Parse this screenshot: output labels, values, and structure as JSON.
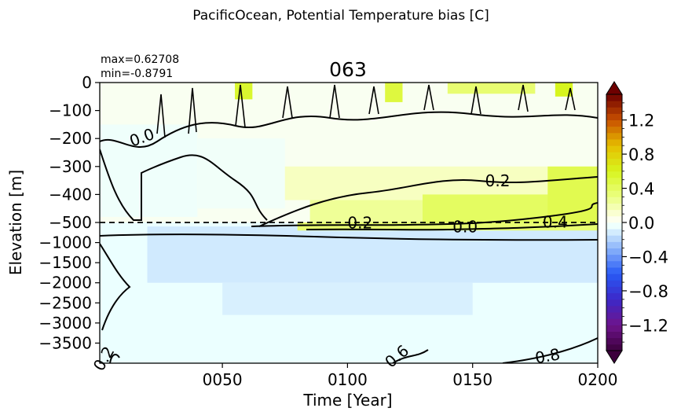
{
  "figure": {
    "suptitle": "PacificOcean, Potential Temperature bias [C]"
  },
  "chart_data": {
    "type": "heatmap",
    "title": "063",
    "stats": {
      "max": "max=0.62708",
      "min": "min=-0.8791"
    },
    "xlabel": "Time [Year]",
    "ylabel": "Elevation [m]",
    "xlim": [
      1,
      200
    ],
    "x_ticks": [
      {
        "value": 50,
        "label": "0050"
      },
      {
        "value": 100,
        "label": "0100"
      },
      {
        "value": 150,
        "label": "0150"
      },
      {
        "value": 200,
        "label": "0200"
      }
    ],
    "upper_y_ticks": [
      {
        "value": 0,
        "label": "0"
      },
      {
        "value": -100,
        "label": "−100"
      },
      {
        "value": -200,
        "label": "−200"
      },
      {
        "value": -300,
        "label": "−300"
      },
      {
        "value": -400,
        "label": "−400"
      },
      {
        "value": -500,
        "label": "−500"
      }
    ],
    "lower_y_ticks": [
      {
        "value": -1000,
        "label": "−1000"
      },
      {
        "value": -1500,
        "label": "−1500"
      },
      {
        "value": -2000,
        "label": "−2000"
      },
      {
        "value": -2500,
        "label": "−2500"
      },
      {
        "value": -3000,
        "label": "−3000"
      },
      {
        "value": -3500,
        "label": "−3500"
      }
    ],
    "split_depth": -500,
    "upper_ylim": [
      -500,
      0
    ],
    "lower_ylim": [
      -4000,
      -500
    ],
    "regions": [
      {
        "x0": 1,
        "x1": 200,
        "y0": 0,
        "y1": -500,
        "value": 0.02
      },
      {
        "x0": 1,
        "x1": 40,
        "y0": -150,
        "y1": -480,
        "value": -0.03
      },
      {
        "x0": 40,
        "x1": 75,
        "y0": -200,
        "y1": -450,
        "value": -0.02
      },
      {
        "x0": 75,
        "x1": 200,
        "y0": -300,
        "y1": -420,
        "value": 0.15
      },
      {
        "x0": 85,
        "x1": 200,
        "y0": -420,
        "y1": -500,
        "value": 0.25
      },
      {
        "x0": 130,
        "x1": 200,
        "y0": -400,
        "y1": -500,
        "value": 0.4
      },
      {
        "x0": 180,
        "x1": 200,
        "y0": -300,
        "y1": -500,
        "value": 0.45
      },
      {
        "x0": 1,
        "x1": 200,
        "y0": -500,
        "y1": -4000,
        "value": -0.05
      },
      {
        "x0": 20,
        "x1": 200,
        "y0": -600,
        "y1": -2000,
        "value": -0.12
      },
      {
        "x0": 50,
        "x1": 150,
        "y0": -2000,
        "y1": -2800,
        "value": -0.1
      },
      {
        "x0": 80,
        "x1": 200,
        "y0": -500,
        "y1": -700,
        "value": 0.35
      },
      {
        "x0": 55,
        "x1": 62,
        "y0": 0,
        "y1": -60,
        "value": 0.55
      },
      {
        "x0": 115,
        "x1": 122,
        "y0": 0,
        "y1": -70,
        "value": 0.5
      },
      {
        "x0": 183,
        "x1": 190,
        "y0": 0,
        "y1": -50,
        "value": 0.6
      },
      {
        "x0": 140,
        "x1": 175,
        "y0": 0,
        "y1": -40,
        "value": 0.35
      }
    ],
    "contour_labels": [
      {
        "text": "0.0",
        "x": 18,
        "y": -200,
        "rot": -20
      },
      {
        "text": "0.2",
        "x": 160,
        "y": -355,
        "rot": 0
      },
      {
        "text": "0.2",
        "x": 105,
        "y": -540,
        "rot": 0
      },
      {
        "text": "0.4",
        "x": 183,
        "y": -520,
        "rot": 0
      },
      {
        "text": "0.0",
        "x": 147,
        "y": -640,
        "rot": 0
      },
      {
        "text": "0.2",
        "x": 3,
        "y": -3900,
        "rot": -60
      },
      {
        "text": "0.6",
        "x": 120,
        "y": -3850,
        "rot": -40
      },
      {
        "text": "0.8",
        "x": 180,
        "y": -3850,
        "rot": -10
      }
    ],
    "colorbar": {
      "vmin": -1.5,
      "vmax": 1.5,
      "levels": 40,
      "ticks": [
        {
          "value": -1.2,
          "label": "−1.2"
        },
        {
          "value": -0.8,
          "label": "−0.8"
        },
        {
          "value": -0.4,
          "label": "−0.4"
        },
        {
          "value": 0.0,
          "label": "0.0"
        },
        {
          "value": 0.4,
          "label": "0.4"
        },
        {
          "value": 0.8,
          "label": "0.8"
        },
        {
          "value": 1.2,
          "label": "1.2"
        }
      ],
      "extend": "both"
    }
  }
}
